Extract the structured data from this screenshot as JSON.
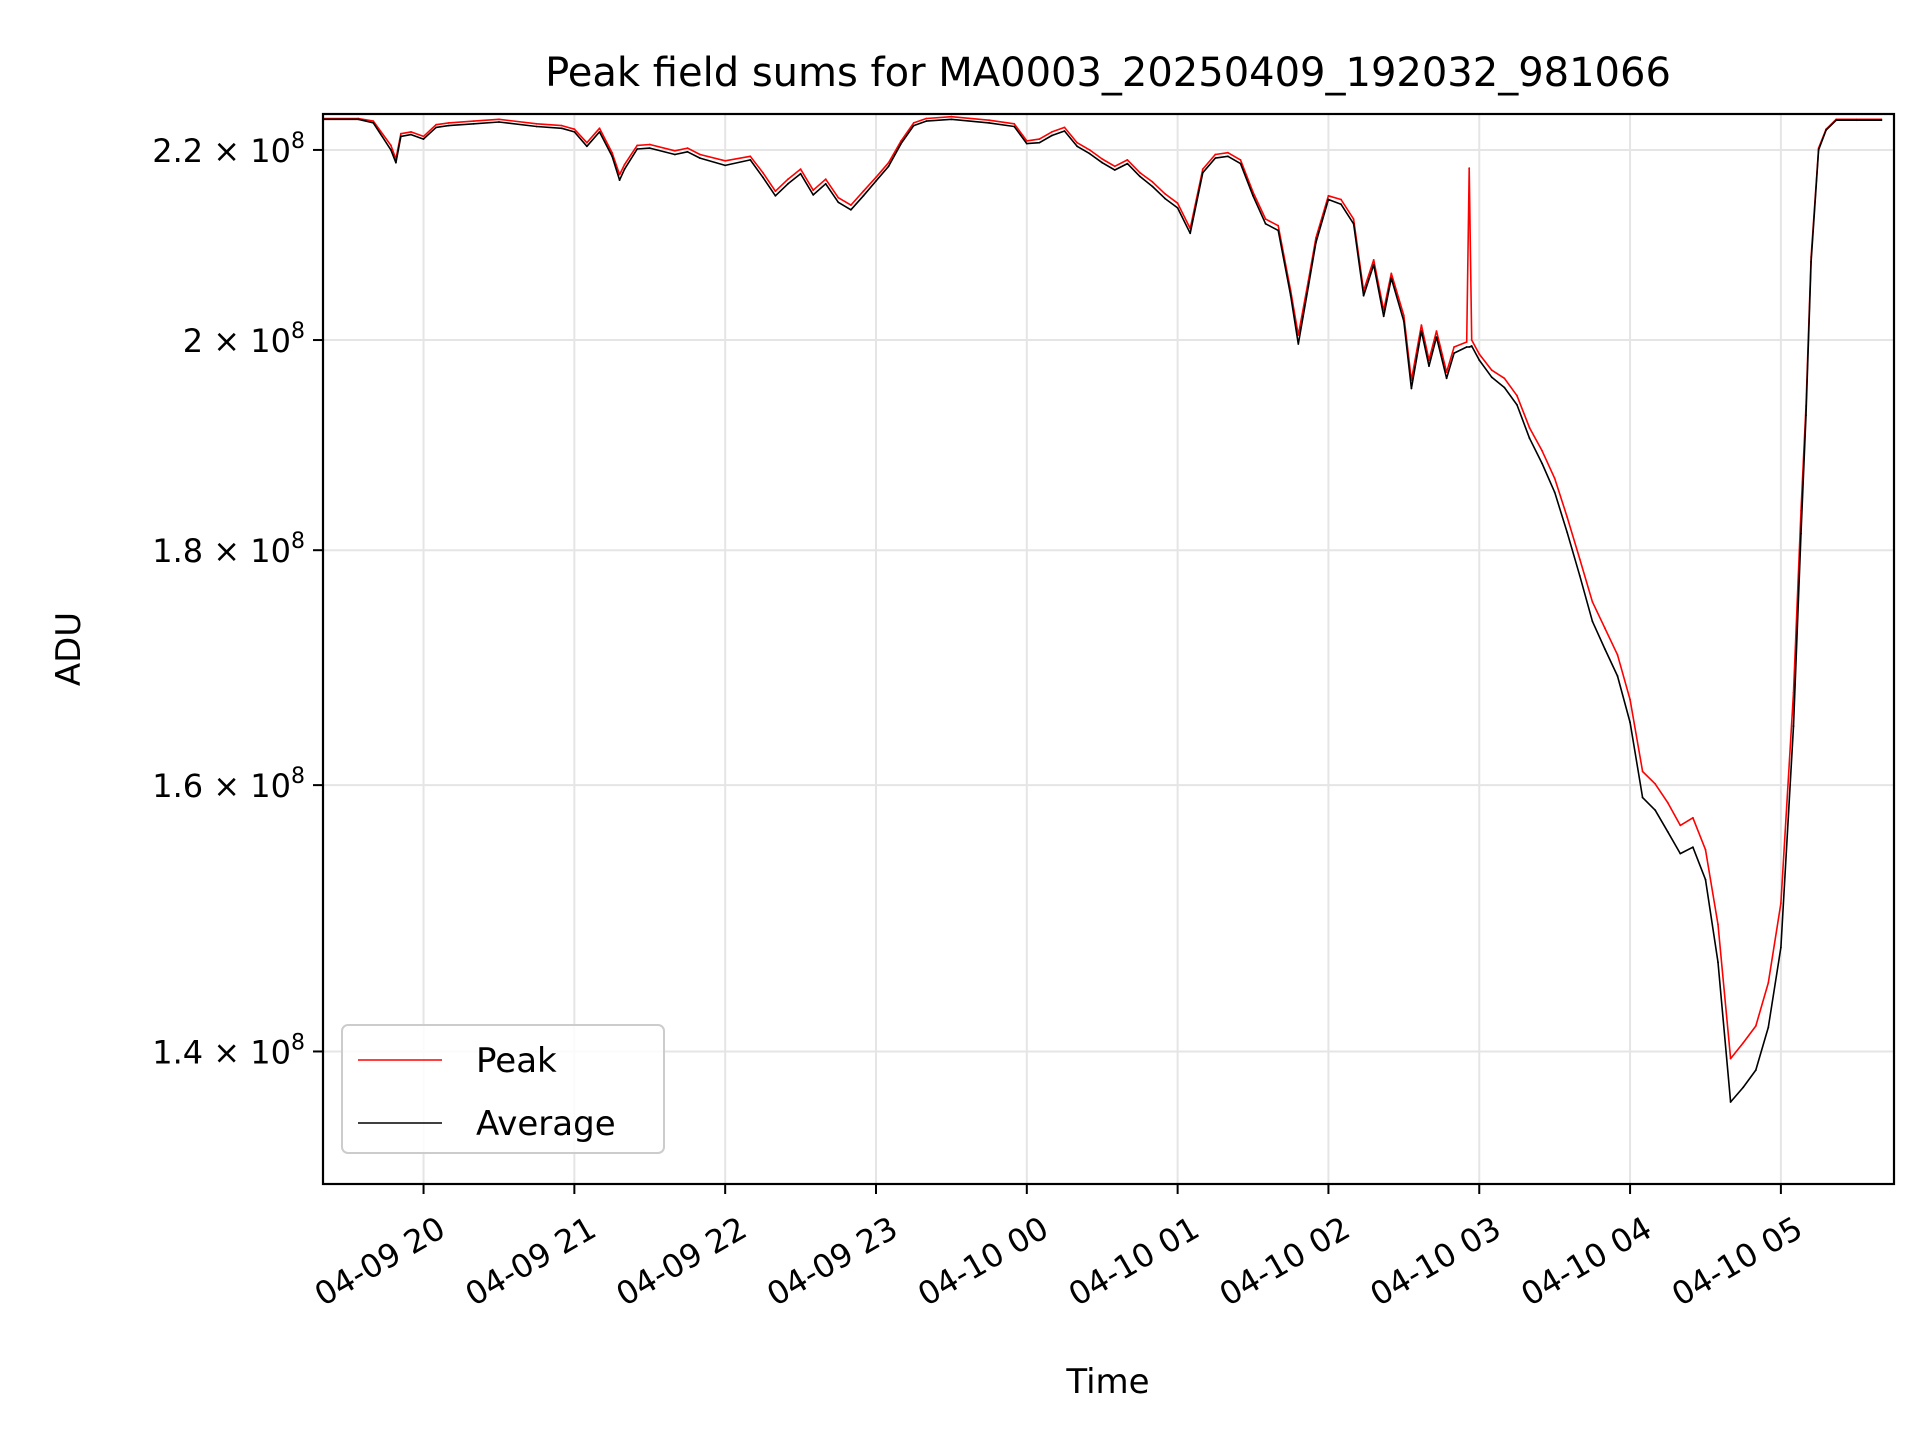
{
  "chart_data": {
    "type": "line",
    "title": "Peak field sums for MA0003_20250409_192032_981066",
    "xlabel": "Time",
    "ylabel": "ADU",
    "y_scale": "log",
    "grid": true,
    "legend_position": "lower-left",
    "xlim": [
      "2025-04-09 19:20",
      "2025-04-10 05:45"
    ],
    "ylim": [
      131000000,
      224000000
    ],
    "x_ticks": [
      {
        "t": "2025-04-09 20:00",
        "label": "04-09 20"
      },
      {
        "t": "2025-04-09 21:00",
        "label": "04-09 21"
      },
      {
        "t": "2025-04-09 22:00",
        "label": "04-09 22"
      },
      {
        "t": "2025-04-09 23:00",
        "label": "04-09 23"
      },
      {
        "t": "2025-04-10 00:00",
        "label": "04-10 00"
      },
      {
        "t": "2025-04-10 01:00",
        "label": "04-10 01"
      },
      {
        "t": "2025-04-10 02:00",
        "label": "04-10 02"
      },
      {
        "t": "2025-04-10 03:00",
        "label": "04-10 03"
      },
      {
        "t": "2025-04-10 04:00",
        "label": "04-10 04"
      },
      {
        "t": "2025-04-10 05:00",
        "label": "04-10 05"
      }
    ],
    "y_ticks": [
      {
        "v": 140000000,
        "mantissa": "1.4",
        "base": "10",
        "exp": "8"
      },
      {
        "v": 160000000,
        "mantissa": "1.6",
        "base": "10",
        "exp": "8"
      },
      {
        "v": 180000000,
        "mantissa": "1.8",
        "base": "10",
        "exp": "8"
      },
      {
        "v": 200000000,
        "mantissa": "2",
        "base": "10",
        "exp": "8"
      },
      {
        "v": 220000000,
        "mantissa": "2.2",
        "base": "10",
        "exp": "8"
      }
    ],
    "series": [
      {
        "name": "Peak",
        "color": "#ff0000",
        "x": [
          "2025-04-09 19:20",
          "2025-04-09 19:34",
          "2025-04-09 19:40",
          "2025-04-09 19:47",
          "2025-04-09 19:49",
          "2025-04-09 19:51",
          "2025-04-09 19:55",
          "2025-04-09 20:00",
          "2025-04-09 20:05",
          "2025-04-09 20:10",
          "2025-04-09 20:20",
          "2025-04-09 20:30",
          "2025-04-09 20:45",
          "2025-04-09 20:55",
          "2025-04-09 21:00",
          "2025-04-09 21:05",
          "2025-04-09 21:10",
          "2025-04-09 21:15",
          "2025-04-09 21:18",
          "2025-04-09 21:20",
          "2025-04-09 21:25",
          "2025-04-09 21:30",
          "2025-04-09 21:40",
          "2025-04-09 21:45",
          "2025-04-09 21:50",
          "2025-04-09 22:00",
          "2025-04-09 22:10",
          "2025-04-09 22:15",
          "2025-04-09 22:20",
          "2025-04-09 22:25",
          "2025-04-09 22:30",
          "2025-04-09 22:35",
          "2025-04-09 22:40",
          "2025-04-09 22:45",
          "2025-04-09 22:50",
          "2025-04-09 22:55",
          "2025-04-09 23:00",
          "2025-04-09 23:05",
          "2025-04-09 23:10",
          "2025-04-09 23:15",
          "2025-04-09 23:20",
          "2025-04-09 23:30",
          "2025-04-09 23:45",
          "2025-04-09 23:55",
          "2025-04-10 00:00",
          "2025-04-10 00:05",
          "2025-04-10 00:10",
          "2025-04-10 00:15",
          "2025-04-10 00:20",
          "2025-04-10 00:25",
          "2025-04-10 00:30",
          "2025-04-10 00:35",
          "2025-04-10 00:40",
          "2025-04-10 00:45",
          "2025-04-10 00:50",
          "2025-04-10 00:55",
          "2025-04-10 01:00",
          "2025-04-10 01:05",
          "2025-04-10 01:10",
          "2025-04-10 01:15",
          "2025-04-10 01:20",
          "2025-04-10 01:25",
          "2025-04-10 01:30",
          "2025-04-10 01:35",
          "2025-04-10 01:40",
          "2025-04-10 01:45",
          "2025-04-10 01:48",
          "2025-04-10 01:52",
          "2025-04-10 01:55",
          "2025-04-10 02:00",
          "2025-04-10 02:05",
          "2025-04-10 02:10",
          "2025-04-10 02:14",
          "2025-04-10 02:18",
          "2025-04-10 02:22",
          "2025-04-10 02:25",
          "2025-04-10 02:30",
          "2025-04-10 02:33",
          "2025-04-10 02:37",
          "2025-04-10 02:40",
          "2025-04-10 02:43",
          "2025-04-10 02:47",
          "2025-04-10 02:50",
          "2025-04-10 02:55",
          "2025-04-10 02:56",
          "2025-04-10 02:57",
          "2025-04-10 03:00",
          "2025-04-10 03:05",
          "2025-04-10 03:10",
          "2025-04-10 03:15",
          "2025-04-10 03:20",
          "2025-04-10 03:25",
          "2025-04-10 03:30",
          "2025-04-10 03:35",
          "2025-04-10 03:40",
          "2025-04-10 03:45",
          "2025-04-10 03:50",
          "2025-04-10 03:55",
          "2025-04-10 04:00",
          "2025-04-10 04:05",
          "2025-04-10 04:10",
          "2025-04-10 04:15",
          "2025-04-10 04:20",
          "2025-04-10 04:25",
          "2025-04-10 04:30",
          "2025-04-10 04:35",
          "2025-04-10 04:40",
          "2025-04-10 04:45",
          "2025-04-10 04:50",
          "2025-04-10 04:55",
          "2025-04-10 05:00",
          "2025-04-10 05:05",
          "2025-04-10 05:08",
          "2025-04-10 05:10",
          "2025-04-10 05:12",
          "2025-04-10 05:15",
          "2025-04-10 05:18",
          "2025-04-10 05:22",
          "2025-04-10 05:30",
          "2025-04-10 05:40"
        ],
        "y": [
          223500000,
          223500000,
          223200000,
          220500000,
          219000000,
          221800000,
          222000000,
          221500000,
          222800000,
          223000000,
          223200000,
          223400000,
          222900000,
          222700000,
          222300000,
          220800000,
          222400000,
          219700000,
          217300000,
          218400000,
          220500000,
          220600000,
          219900000,
          220200000,
          219500000,
          218800000,
          219300000,
          217500000,
          215500000,
          216800000,
          217900000,
          215600000,
          216800000,
          214800000,
          214000000,
          215500000,
          217000000,
          218600000,
          221000000,
          223000000,
          223500000,
          223700000,
          223300000,
          222900000,
          221000000,
          221200000,
          222000000,
          222500000,
          220800000,
          220000000,
          219000000,
          218200000,
          218900000,
          217500000,
          216500000,
          215200000,
          214200000,
          211500000,
          217900000,
          219500000,
          219700000,
          218900000,
          215400000,
          212500000,
          211800000,
          205000000,
          200500000,
          206000000,
          210500000,
          215000000,
          214600000,
          212500000,
          205000000,
          208200000,
          203000000,
          206800000,
          202500000,
          196000000,
          201500000,
          198000000,
          200900000,
          196800000,
          199300000,
          199800000,
          218000000,
          200000000,
          198600000,
          197000000,
          196200000,
          194500000,
          191400000,
          189200000,
          186600000,
          183000000,
          179200000,
          175400000,
          173100000,
          170800000,
          167000000,
          161100000,
          160100000,
          158600000,
          156800000,
          157400000,
          154900000,
          149200000,
          139500000,
          140600000,
          141800000,
          144900000,
          150800000,
          167600000,
          183600000,
          193500000,
          208500000,
          220200000,
          222300000,
          223400000,
          223400000,
          223400000
        ]
      },
      {
        "name": "Average",
        "color": "#000000",
        "x": [
          "2025-04-09 19:20",
          "2025-04-09 19:34",
          "2025-04-09 19:40",
          "2025-04-09 19:47",
          "2025-04-09 19:49",
          "2025-04-09 19:51",
          "2025-04-09 19:55",
          "2025-04-09 20:00",
          "2025-04-09 20:05",
          "2025-04-09 20:10",
          "2025-04-09 20:20",
          "2025-04-09 20:30",
          "2025-04-09 20:45",
          "2025-04-09 20:55",
          "2025-04-09 21:00",
          "2025-04-09 21:05",
          "2025-04-09 21:10",
          "2025-04-09 21:15",
          "2025-04-09 21:18",
          "2025-04-09 21:20",
          "2025-04-09 21:25",
          "2025-04-09 21:30",
          "2025-04-09 21:40",
          "2025-04-09 21:45",
          "2025-04-09 21:50",
          "2025-04-09 22:00",
          "2025-04-09 22:10",
          "2025-04-09 22:15",
          "2025-04-09 22:20",
          "2025-04-09 22:25",
          "2025-04-09 22:30",
          "2025-04-09 22:35",
          "2025-04-09 22:40",
          "2025-04-09 22:45",
          "2025-04-09 22:50",
          "2025-04-09 22:55",
          "2025-04-09 23:00",
          "2025-04-09 23:05",
          "2025-04-09 23:10",
          "2025-04-09 23:15",
          "2025-04-09 23:20",
          "2025-04-09 23:30",
          "2025-04-09 23:45",
          "2025-04-09 23:55",
          "2025-04-10 00:00",
          "2025-04-10 00:05",
          "2025-04-10 00:10",
          "2025-04-10 00:15",
          "2025-04-10 00:20",
          "2025-04-10 00:25",
          "2025-04-10 00:30",
          "2025-04-10 00:35",
          "2025-04-10 00:40",
          "2025-04-10 00:45",
          "2025-04-10 00:50",
          "2025-04-10 00:55",
          "2025-04-10 01:00",
          "2025-04-10 01:05",
          "2025-04-10 01:10",
          "2025-04-10 01:15",
          "2025-04-10 01:20",
          "2025-04-10 01:25",
          "2025-04-10 01:30",
          "2025-04-10 01:35",
          "2025-04-10 01:40",
          "2025-04-10 01:45",
          "2025-04-10 01:48",
          "2025-04-10 01:52",
          "2025-04-10 01:55",
          "2025-04-10 02:00",
          "2025-04-10 02:05",
          "2025-04-10 02:10",
          "2025-04-10 02:14",
          "2025-04-10 02:18",
          "2025-04-10 02:22",
          "2025-04-10 02:25",
          "2025-04-10 02:30",
          "2025-04-10 02:33",
          "2025-04-10 02:37",
          "2025-04-10 02:40",
          "2025-04-10 02:43",
          "2025-04-10 02:47",
          "2025-04-10 02:50",
          "2025-04-10 02:55",
          "2025-04-10 02:56",
          "2025-04-10 02:57",
          "2025-04-10 03:00",
          "2025-04-10 03:05",
          "2025-04-10 03:10",
          "2025-04-10 03:15",
          "2025-04-10 03:20",
          "2025-04-10 03:25",
          "2025-04-10 03:30",
          "2025-04-10 03:35",
          "2025-04-10 03:40",
          "2025-04-10 03:45",
          "2025-04-10 03:50",
          "2025-04-10 03:55",
          "2025-04-10 04:00",
          "2025-04-10 04:05",
          "2025-04-10 04:10",
          "2025-04-10 04:15",
          "2025-04-10 04:20",
          "2025-04-10 04:25",
          "2025-04-10 04:30",
          "2025-04-10 04:35",
          "2025-04-10 04:40",
          "2025-04-10 04:45",
          "2025-04-10 04:50",
          "2025-04-10 04:55",
          "2025-04-10 05:00",
          "2025-04-10 05:05",
          "2025-04-10 05:08",
          "2025-04-10 05:10",
          "2025-04-10 05:12",
          "2025-04-10 05:15",
          "2025-04-10 05:18",
          "2025-04-10 05:22",
          "2025-04-10 05:30",
          "2025-04-10 05:40"
        ],
        "y": [
          223400000,
          223400000,
          223000000,
          220000000,
          218600000,
          221500000,
          221700000,
          221200000,
          222500000,
          222700000,
          222900000,
          223100000,
          222600000,
          222400000,
          222000000,
          220400000,
          222000000,
          219300000,
          216700000,
          217900000,
          220100000,
          220200000,
          219500000,
          219800000,
          219100000,
          218300000,
          218900000,
          217000000,
          215000000,
          216300000,
          217400000,
          215100000,
          216300000,
          214300000,
          213500000,
          215000000,
          216600000,
          218200000,
          220700000,
          222700000,
          223200000,
          223400000,
          223000000,
          222600000,
          220700000,
          220800000,
          221600000,
          222100000,
          220400000,
          219600000,
          218600000,
          217800000,
          218500000,
          217100000,
          216000000,
          214700000,
          213700000,
          211000000,
          217500000,
          219100000,
          219300000,
          218500000,
          215000000,
          212000000,
          211300000,
          204500000,
          199600000,
          205400000,
          210000000,
          214600000,
          214100000,
          212000000,
          204500000,
          207700000,
          202400000,
          206300000,
          201900000,
          195200000,
          200900000,
          197400000,
          200300000,
          196200000,
          198700000,
          199300000,
          199300000,
          199400000,
          198000000,
          196300000,
          195300000,
          193600000,
          190400000,
          188000000,
          185300000,
          181600000,
          177700000,
          173700000,
          171300000,
          169000000,
          165100000,
          159000000,
          158000000,
          156300000,
          154600000,
          155100000,
          152600000,
          146400000,
          136500000,
          137500000,
          138700000,
          141700000,
          147500000,
          164800000,
          181500000,
          192600000,
          208000000,
          220000000,
          222200000,
          223300000,
          223300000,
          223300000
        ]
      }
    ]
  }
}
